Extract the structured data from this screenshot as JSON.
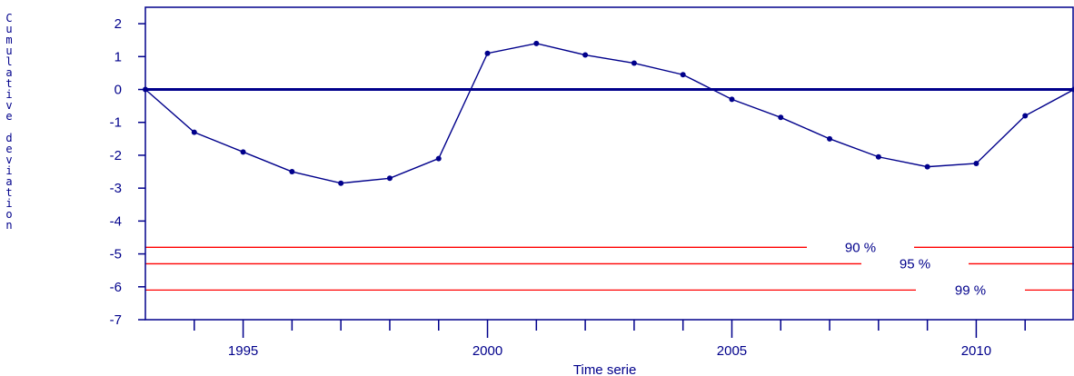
{
  "chart_data": {
    "type": "line",
    "title": "",
    "xlabel": "Time serie",
    "ylabel": "Cumulative deviation",
    "xlim": [
      1993,
      2012
    ],
    "ylim": [
      -7,
      2.5
    ],
    "x_ticks": [
      1995,
      2000,
      2005,
      2010
    ],
    "y_ticks": [
      2,
      1,
      0,
      -1,
      -2,
      -3,
      -4,
      -5,
      -6,
      -7
    ],
    "grid": false,
    "colors": {
      "series": "#00008b",
      "thresholds": "#ff0000",
      "zero_line": "#00008b"
    },
    "series": [
      {
        "x": [
          1993,
          1994,
          1995,
          1996,
          1997,
          1998,
          1999,
          2000,
          2001,
          2002,
          2003,
          2004,
          2005,
          2006,
          2007,
          2008,
          2009,
          2010,
          2011,
          2012
        ],
        "values": [
          0,
          -1.3,
          -1.9,
          -2.5,
          -2.85,
          -2.7,
          -2.1,
          1.1,
          1.4,
          1.05,
          0.8,
          0.45,
          -0.3,
          -0.85,
          -1.5,
          -2.05,
          -2.35,
          -2.25,
          -0.8,
          0.0
        ]
      }
    ],
    "thresholds": [
      {
        "label": "90 %",
        "value": -4.8
      },
      {
        "label": "95 %",
        "value": -5.3
      },
      {
        "label": "99 %",
        "value": -6.1
      }
    ]
  }
}
